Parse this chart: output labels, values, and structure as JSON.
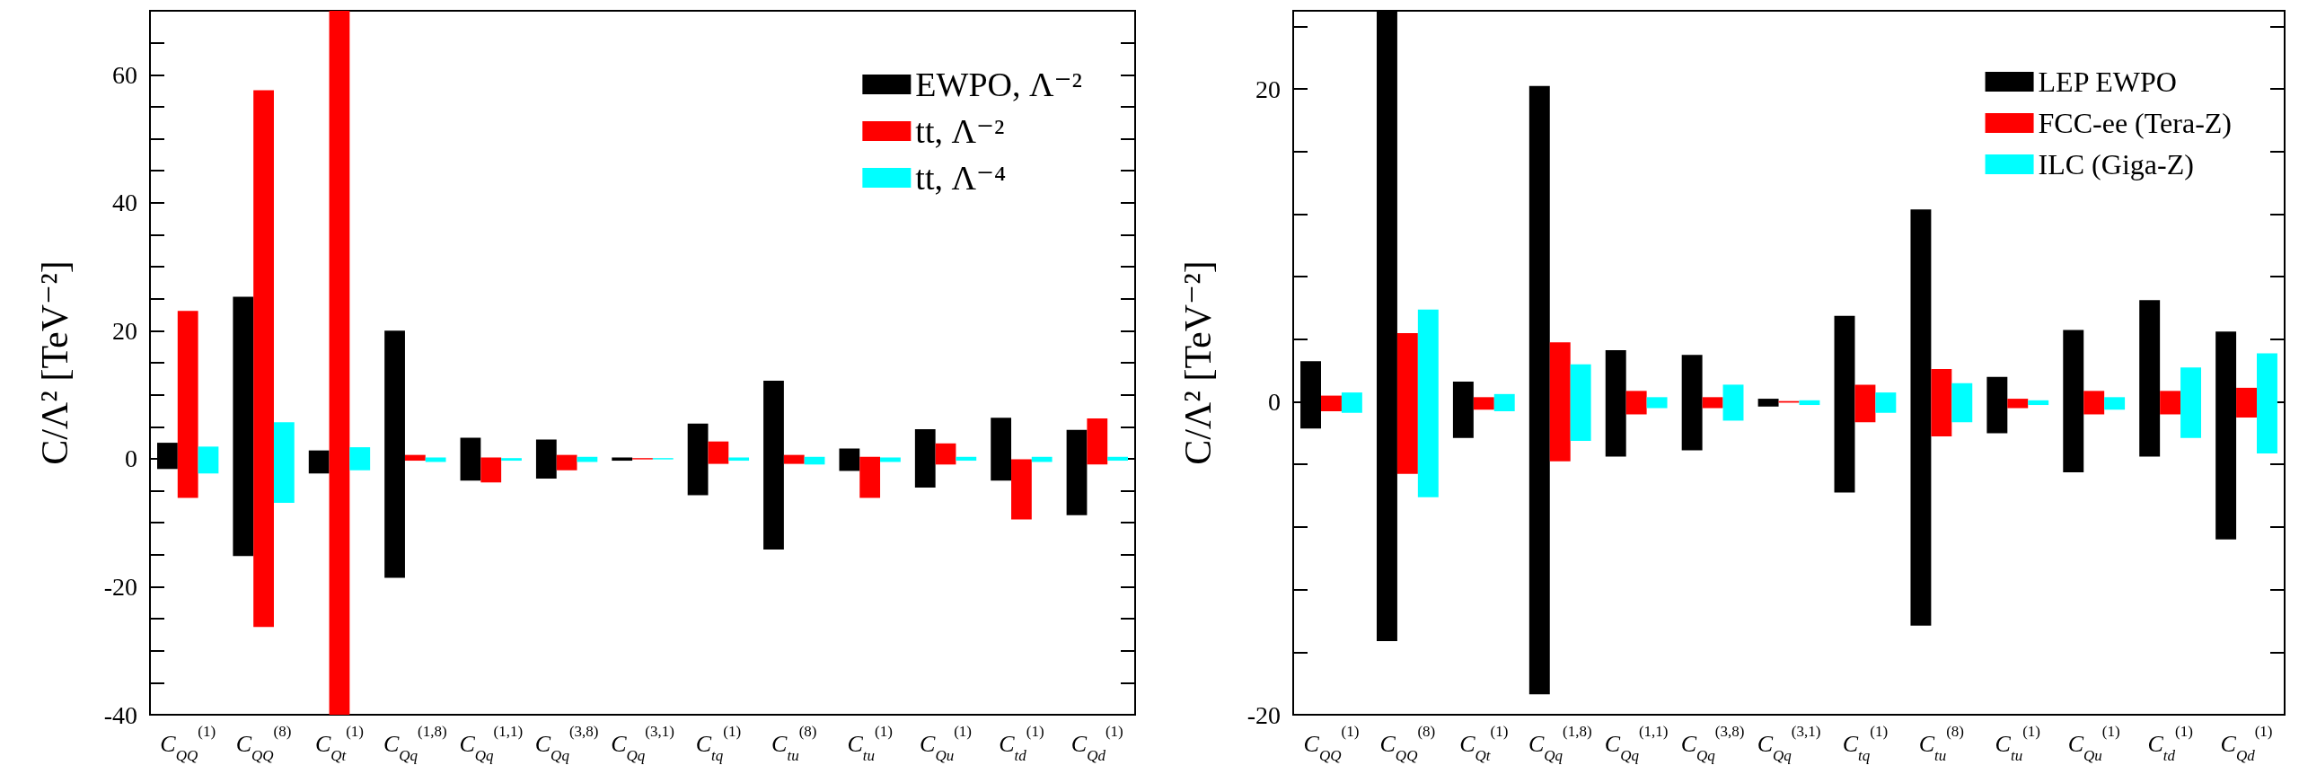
{
  "chart_data": [
    {
      "type": "bar",
      "ylabel": "C/Λ² [TeV⁻²]",
      "categories": [
        "C$_{QQ}$$^{(1)}$",
        "C$_{QQ}$$^{(8)}$",
        "C$_{Qt}$$^{(1)}$",
        "C$_{Qq}$$^{(1,8)}$",
        "C$_{Qq}$$^{(1,1)}$",
        "C$_{Qq}$$^{(3,8)}$",
        "C$_{Qq}$$^{(3,1)}$",
        "C$_{tq}$$^{(1)}$",
        "C$_{tu}$$^{(8)}$",
        "C$_{tu}$$^{(1)}$",
        "C$_{Qu}$$^{(1)}$",
        "C$_{td}$$^{(1)}$",
        "C$_{Qd}$$^{(1)}$"
      ],
      "series": [
        {
          "name": "EWPO, Λ⁻²",
          "color": "#000000",
          "base": [
            -1.6,
            -15.2,
            -2.3,
            -18.6,
            -3.4,
            -3.1,
            -0.3,
            -5.7,
            -14.2,
            -1.9,
            -4.5,
            -3.4,
            -8.8
          ],
          "values": [
            4.1,
            40.5,
            3.6,
            38.6,
            6.7,
            6.1,
            0.5,
            11.2,
            26.4,
            3.5,
            9.1,
            9.8,
            13.3
          ]
        },
        {
          "name": "tt, Λ⁻²",
          "color": "#ff0000",
          "base": [
            -6.1,
            -26.3,
            -40,
            -0.3,
            -3.7,
            -1.8,
            -0.1,
            -0.8,
            -0.8,
            -6.1,
            -0.9,
            -9.5,
            -0.9
          ],
          "values": [
            29.2,
            83.9,
            110,
            0.9,
            3.9,
            2.4,
            0.2,
            3.5,
            1.4,
            6.4,
            3.3,
            9.4,
            7.2
          ]
        },
        {
          "name": "tt, Λ⁻⁴",
          "color": "#00ffff",
          "base": [
            -2.3,
            -6.9,
            -1.8,
            -0.5,
            -0.3,
            -0.5,
            -0.1,
            -0.3,
            -0.9,
            -0.5,
            -0.3,
            -0.5,
            -0.3
          ],
          "values": [
            4.2,
            12.6,
            3.6,
            0.7,
            0.4,
            0.8,
            0.2,
            0.5,
            1.2,
            0.7,
            0.6,
            0.8,
            0.6
          ]
        }
      ],
      "ylim": [
        -40,
        70
      ],
      "yticks": [
        -40,
        {
          "value": -35,
          "label": null
        },
        {
          "value": -30,
          "label": null
        },
        {
          "value": -25,
          "label": null
        },
        -20,
        {
          "value": -15,
          "label": null
        },
        {
          "value": -10,
          "label": null
        },
        {
          "value": -5,
          "label": null
        },
        0,
        {
          "value": 5,
          "label": null
        },
        {
          "value": 10,
          "label": null
        },
        {
          "value": 15,
          "label": null
        },
        20,
        {
          "value": 25,
          "label": null
        },
        {
          "value": 30,
          "label": null
        },
        {
          "value": 35,
          "label": null
        },
        40,
        {
          "value": 45,
          "label": null
        },
        {
          "value": 50,
          "label": null
        },
        {
          "value": 55,
          "label": null
        },
        60,
        {
          "value": 65,
          "label": null
        }
      ],
      "grid": false,
      "legend": "top right"
    },
    {
      "type": "bar",
      "ylabel": "C/Λ² [TeV⁻²]",
      "categories": [
        "C$_{QQ}$$^{(1)}$",
        "C$_{QQ}$$^{(8)}$",
        "C$_{Qt}$$^{(1)}$",
        "C$_{Qq}$$^{(1,8)}$",
        "C$_{Qq}$$^{(1,1)}$",
        "C$_{Qq}$$^{(3,8)}$",
        "C$_{Qq}$$^{(3,1)}$",
        "C$_{tq}$$^{(1)}$",
        "C$_{tu}$$^{(8)}$",
        "C$_{tu}$$^{(1)}$",
        "C$_{Qu}$$^{(1)}$",
        "C$_{td}$$^{(1)}$",
        "C$_{Qd}$$^{(1)}$"
      ],
      "series": [
        {
          "name": "LEP EWPO",
          "color": "#000000",
          "base": [
            -1.7,
            -15.3,
            -2.3,
            -18.7,
            -3.5,
            -3.1,
            -0.3,
            -5.8,
            -14.3,
            -2.0,
            -4.5,
            -3.5,
            -8.8
          ],
          "values": [
            4.3,
            40.3,
            3.6,
            38.9,
            6.8,
            6.1,
            0.5,
            11.3,
            26.6,
            3.6,
            9.1,
            10,
            13.3
          ]
        },
        {
          "name": "FCC-ee (Tera-Z)",
          "color": "#ff0000",
          "base": [
            -0.6,
            -4.6,
            -0.5,
            -3.8,
            -0.8,
            -0.4,
            -0.05,
            -1.3,
            -2.2,
            -0.4,
            -0.8,
            -0.8,
            -1.0
          ],
          "values": [
            1.0,
            9.0,
            0.8,
            7.6,
            1.5,
            0.7,
            0.1,
            2.4,
            4.3,
            0.6,
            1.5,
            1.5,
            1.9
          ]
        },
        {
          "name": "ILC (Giga-Z)",
          "color": "#00ffff",
          "base": [
            -0.7,
            -6.1,
            -0.6,
            -2.5,
            -0.4,
            -1.2,
            -0.2,
            -0.7,
            -1.3,
            -0.2,
            -0.5,
            -2.3,
            -3.3
          ],
          "values": [
            1.3,
            12,
            1.1,
            4.9,
            0.7,
            2.3,
            0.3,
            1.3,
            2.5,
            0.3,
            0.8,
            4.5,
            6.4
          ]
        }
      ],
      "ylim": [
        -20,
        25
      ],
      "yticks": [
        -20,
        {
          "value": -16,
          "label": null
        },
        {
          "value": -12,
          "label": null
        },
        {
          "value": -8,
          "label": null
        },
        {
          "value": -4,
          "label": null
        },
        0,
        {
          "value": 4,
          "label": null
        },
        {
          "value": 8,
          "label": null
        },
        {
          "value": 12,
          "label": null
        },
        {
          "value": 16,
          "label": null
        },
        20,
        {
          "value": 24,
          "label": null
        }
      ],
      "grid": false,
      "legend": "top right"
    }
  ]
}
